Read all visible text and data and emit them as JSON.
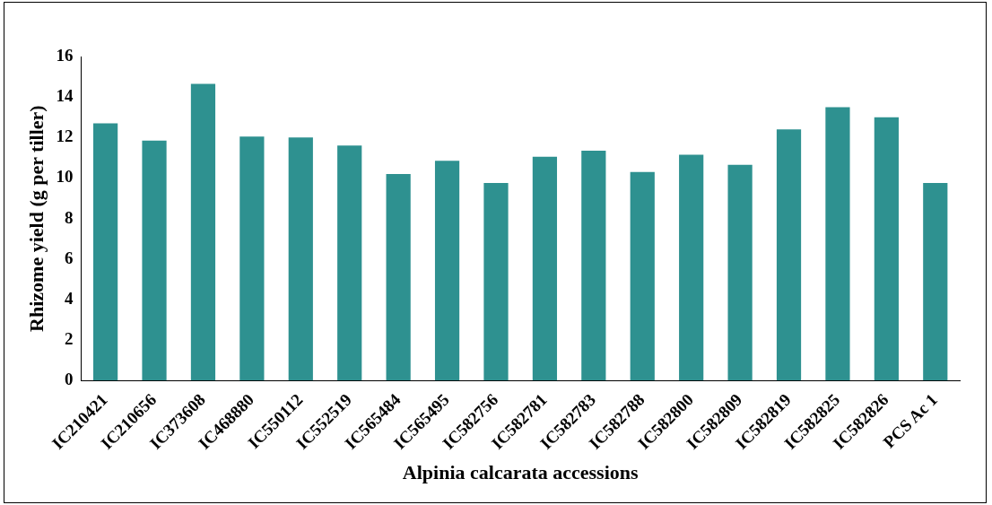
{
  "chart_data": {
    "type": "bar",
    "xlabel": "Alpinia calcarata accessions",
    "ylabel": "Rhizome yield (g per tiller)",
    "categories": [
      "IC210421",
      "IC210656",
      "IC373608",
      "IC468880",
      "IC550112",
      "IC552519",
      "IC565484",
      "IC565495",
      "IC582756",
      "IC582781",
      "IC582783",
      "IC582788",
      "IC582800",
      "IC582809",
      "IC582819",
      "IC582825",
      "IC582826",
      "PCS Ac 1"
    ],
    "values": [
      12.7,
      11.85,
      14.65,
      12.05,
      12.0,
      11.6,
      10.2,
      10.85,
      9.75,
      11.05,
      11.35,
      10.3,
      11.15,
      10.65,
      12.4,
      13.5,
      13.0,
      9.75
    ],
    "color": "#2e9190",
    "ylim": [
      0,
      16
    ],
    "yticks": [
      0,
      2,
      4,
      6,
      8,
      10,
      12,
      14,
      16
    ],
    "grid": false,
    "legend": false
  }
}
